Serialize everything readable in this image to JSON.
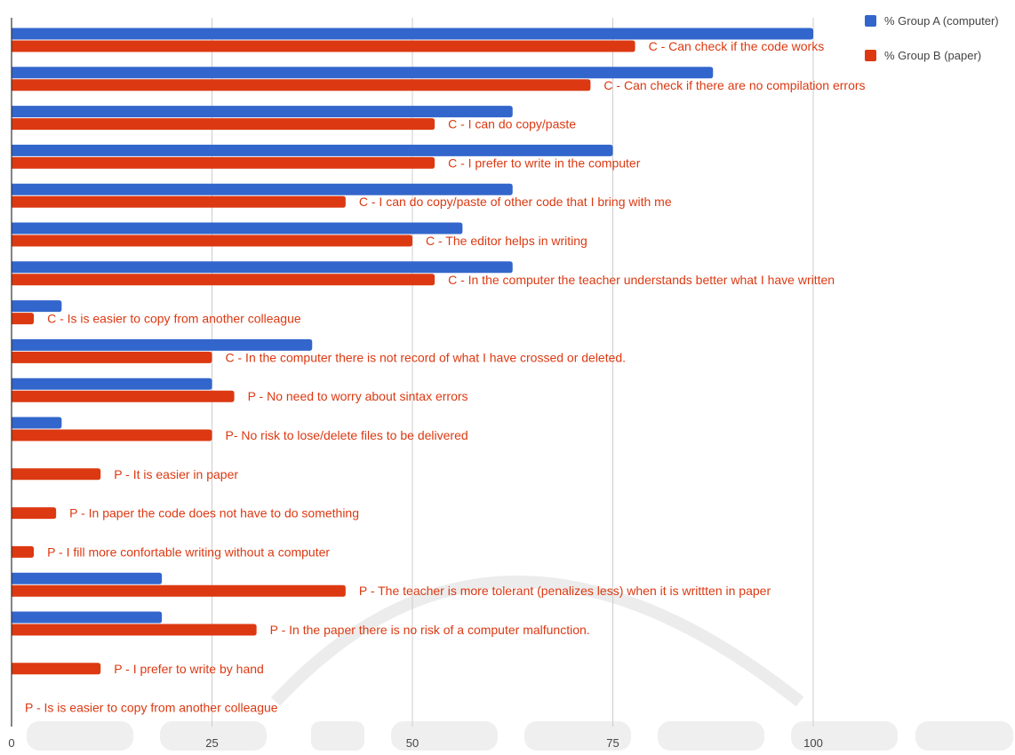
{
  "chart_data": {
    "type": "bar",
    "orientation": "horizontal",
    "title": "",
    "xlabel": "",
    "ylabel": "",
    "xlim": [
      0,
      100
    ],
    "x_ticks": [
      "0",
      "25",
      "50",
      "75",
      "100"
    ],
    "grid": true,
    "legend_position": "top-right",
    "categories": [
      "C - Can check if the code works",
      "C - Can check if there are no compilation errors",
      "C - I can do copy/paste",
      "C - I prefer to write in the computer",
      "C - I can do copy/paste of other code that I bring with me",
      "C - The editor helps in writing",
      "C - In the computer the teacher understands better what I have written",
      "C - Is is easier to copy from another colleague",
      "C - In the computer there is not record of what I have crossed or deleted.",
      "P - No need to worry about sintax errors",
      "P- No risk to lose/delete files to be delivered",
      "P - It is easier in paper",
      "P - In paper the code does not have to do something",
      "P - I fill more confortable writing without a computer",
      "P - The teacher is more tolerant (penalizes less) when it is writtten in paper",
      "P - In the paper there is no risk of a computer malfunction.",
      "P - I prefer to write by hand",
      "P - Is is easier to copy from another colleague"
    ],
    "series": [
      {
        "name": "% Group A (computer)",
        "color": "#3366cc",
        "values": [
          100,
          87.5,
          62.5,
          75,
          62.5,
          56.25,
          62.5,
          6.25,
          37.5,
          25,
          6.25,
          0,
          0,
          0,
          18.75,
          18.75,
          0,
          0
        ]
      },
      {
        "name": "% Group B (paper)",
        "color": "#dc3912",
        "values": [
          77.78,
          72.22,
          52.78,
          52.78,
          41.67,
          50,
          52.78,
          2.78,
          25,
          27.78,
          25,
          11.11,
          5.56,
          2.78,
          41.67,
          30.56,
          11.11,
          0
        ]
      }
    ],
    "label_color": "#dc3912",
    "grid_color": "#cccccc",
    "axis_color": "#333333",
    "tick_label_color": "#444444",
    "legend_text_color": "#444444",
    "watermark_color": "#e9e9e9"
  }
}
